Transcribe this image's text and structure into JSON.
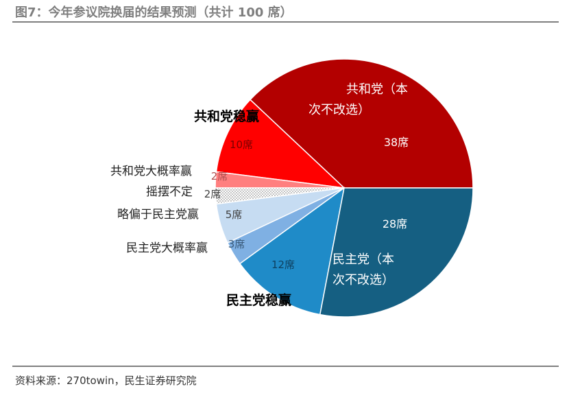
{
  "header": {
    "title": "图7：今年参议院换届的结果预测（共计 100 席）"
  },
  "footer": {
    "source": "资料来源：270towin，民生证券研究院"
  },
  "chart_data": {
    "type": "pie",
    "title": "图7：今年参议院换届的结果预测（共计 100 席）",
    "unit": "席",
    "slices": [
      {
        "name": "共和党（本次不改选）",
        "value": 38,
        "label": "38席",
        "color": "#b30000"
      },
      {
        "name": "共和党稳赢",
        "value": 10,
        "label": "10席",
        "color": "#ff0000"
      },
      {
        "name": "共和党大概率赢",
        "value": 2,
        "label": "2席",
        "color": "#ff7f7f"
      },
      {
        "name": "摇摆不定",
        "value": 2,
        "label": "2席",
        "color": "#e6e6e6",
        "pattern": "dotted"
      },
      {
        "name": "略偏于民主党赢",
        "value": 5,
        "label": "5席",
        "color": "#c6dcf2"
      },
      {
        "name": "民主党大概率赢",
        "value": 3,
        "label": "3席",
        "color": "#7fb0e3"
      },
      {
        "name": "民主党稳赢",
        "value": 12,
        "label": "12席",
        "color": "#1f8bc8"
      },
      {
        "name": "民主党（本次不改选）",
        "value": 28,
        "label": "28席",
        "color": "#155f82"
      }
    ]
  }
}
